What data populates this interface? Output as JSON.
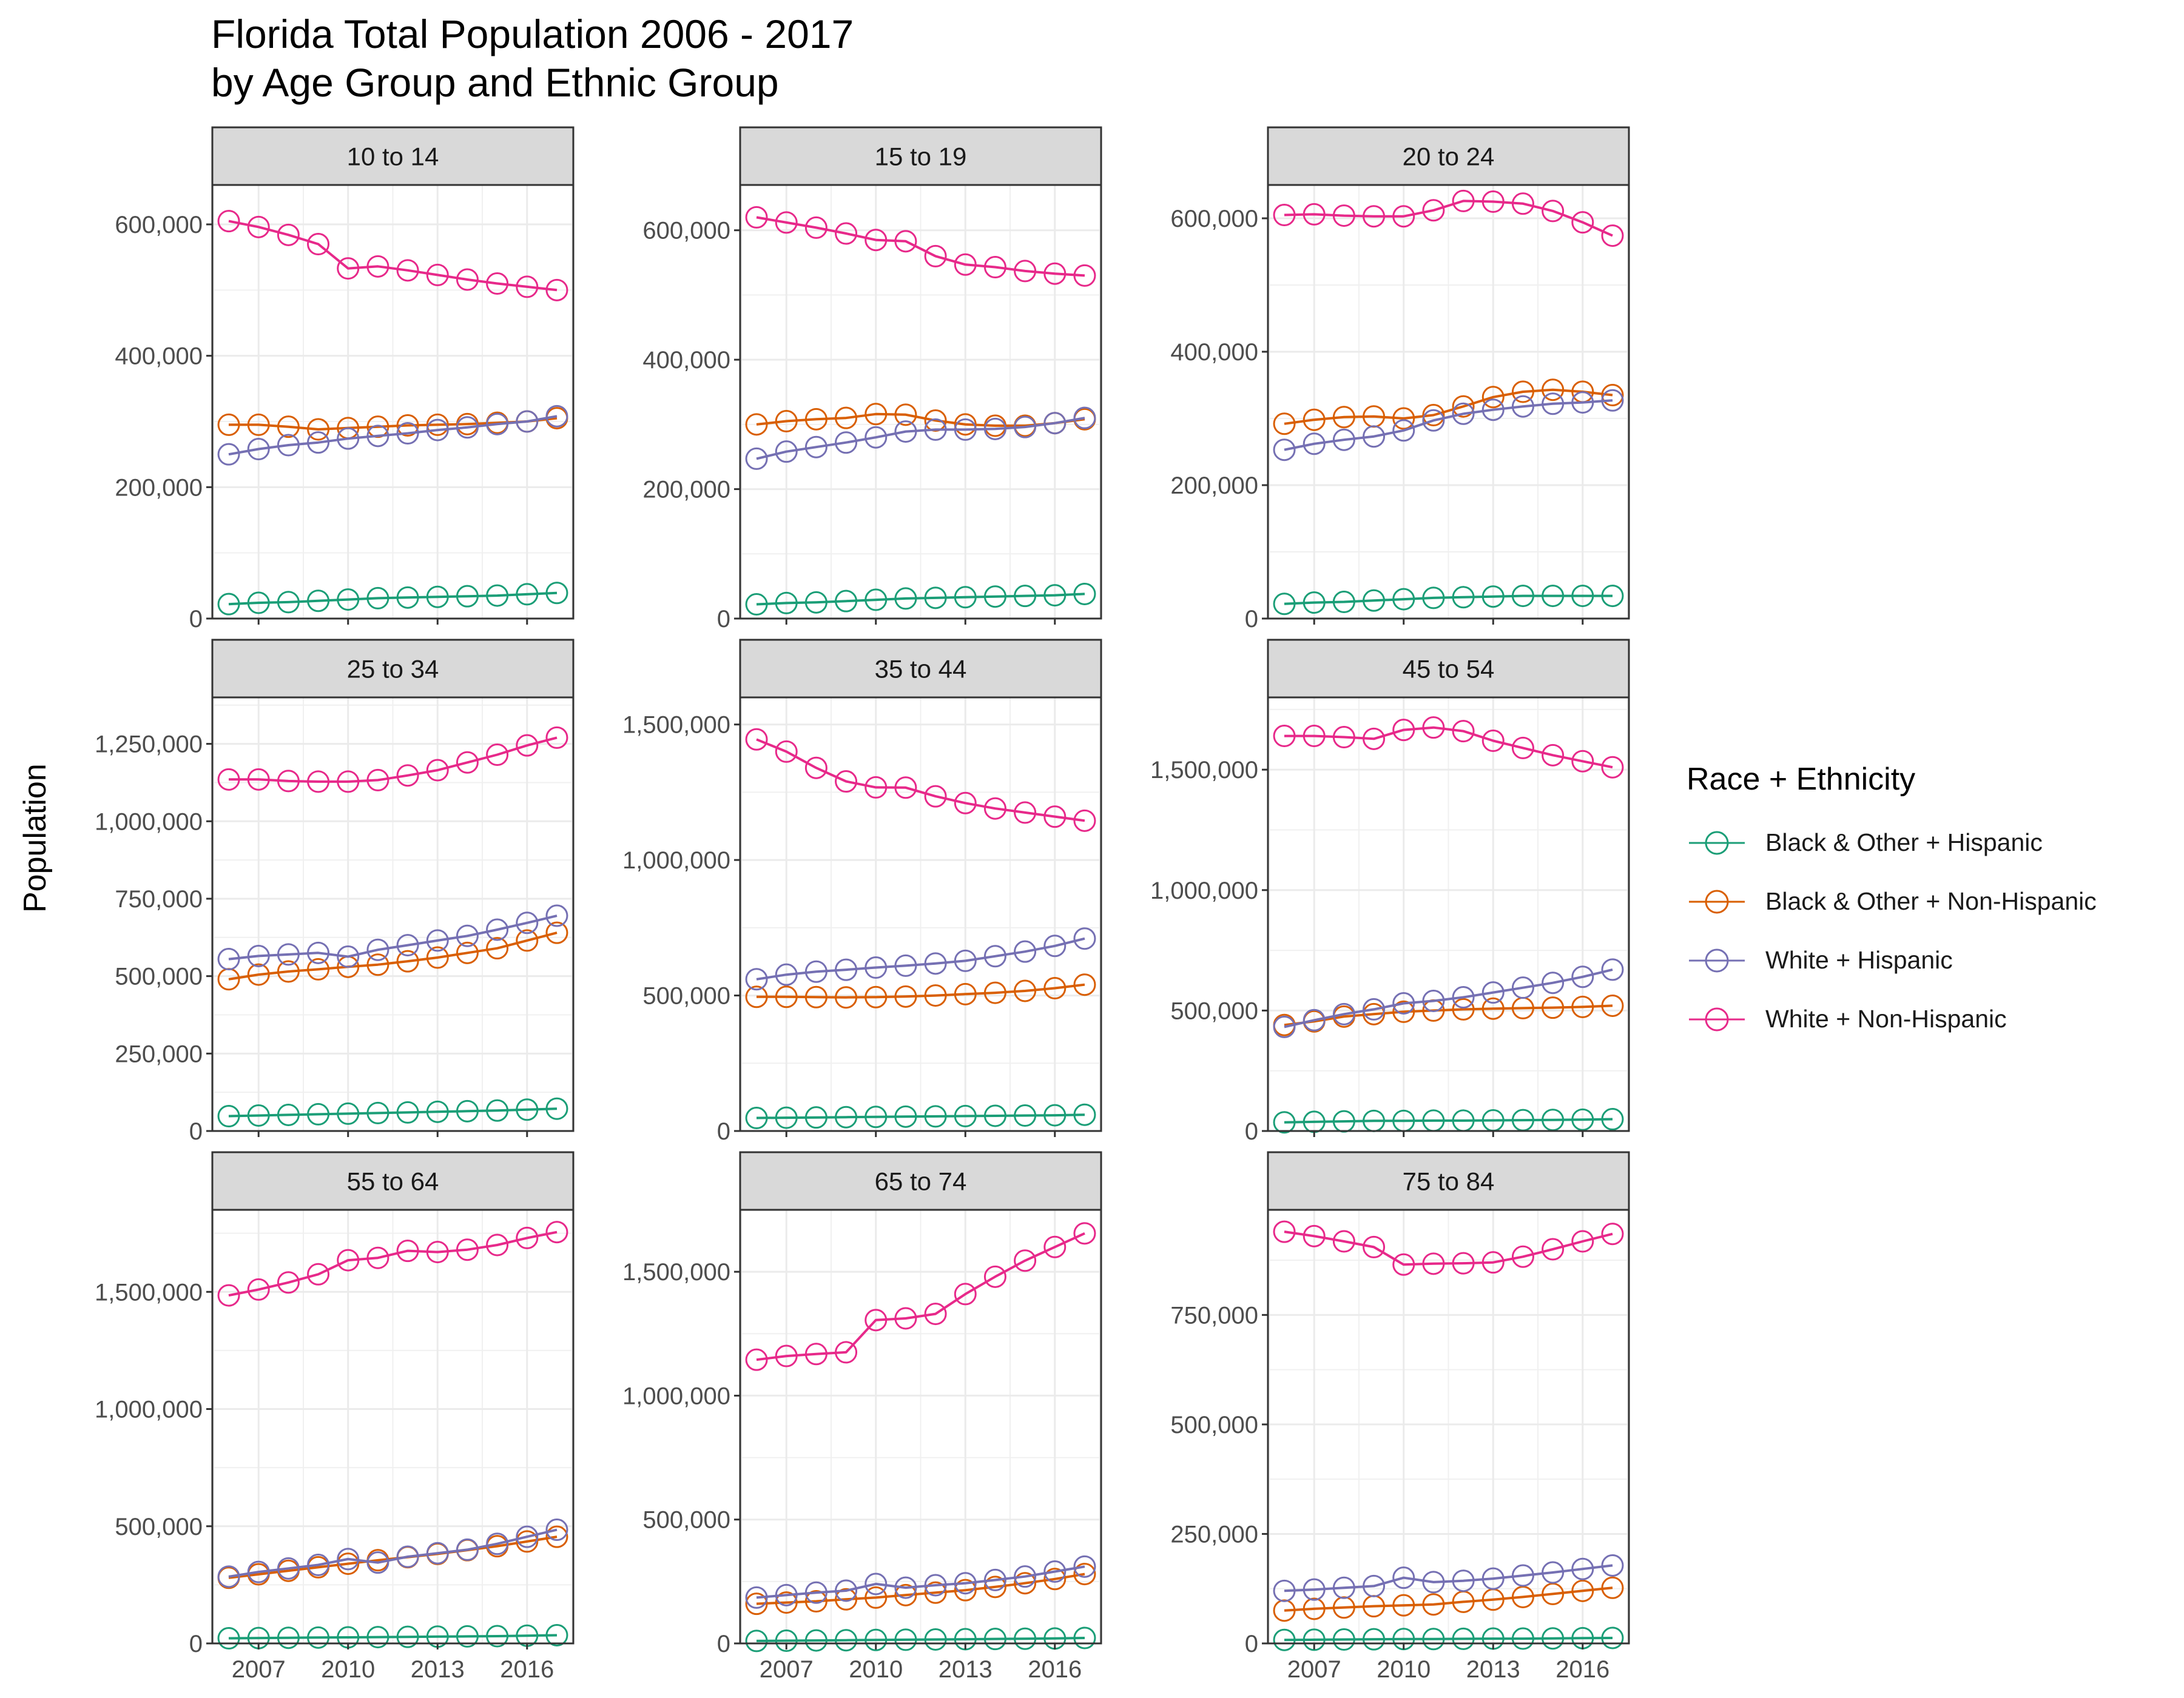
{
  "chart_data": {
    "type": "line",
    "title": [
      "Florida Total Population 2006 - 2017",
      "by Age Group and Ethnic Group"
    ],
    "ylabel": "Population",
    "xlabel": "",
    "x": [
      2006,
      2007,
      2008,
      2009,
      2010,
      2011,
      2012,
      2013,
      2014,
      2015,
      2016,
      2017
    ],
    "x_ticks": [
      2007,
      2010,
      2013,
      2016
    ],
    "grid": true,
    "markers": "open-circle",
    "facet_layout": "3x3, free y scales",
    "legend": {
      "title": "Race + Ethnicity",
      "position": "right",
      "entries": [
        {
          "name": "Black & Other + Hispanic",
          "color": "#1b9e77"
        },
        {
          "name": "Black & Other + Non-Hispanic",
          "color": "#d95f02"
        },
        {
          "name": "White + Hispanic",
          "color": "#7570b3"
        },
        {
          "name": "White + Non-Hispanic",
          "color": "#e7298a"
        }
      ]
    },
    "panels": [
      {
        "label": "10 to 14",
        "ylim": [
          0,
          660000
        ],
        "yticks": [
          0,
          200000,
          400000,
          600000
        ],
        "ytick_labels": [
          "0",
          "200,000",
          "400,000",
          "600,000"
        ],
        "series": [
          {
            "name": "Black & Other + Hispanic",
            "values": [
              22000,
              24000,
              25000,
              27000,
              29000,
              31000,
              32000,
              33000,
              34000,
              35000,
              37000,
              39000
            ]
          },
          {
            "name": "Black & Other + Non-Hispanic",
            "values": [
              295000,
              295000,
              292000,
              288000,
              290000,
              292000,
              294000,
              295000,
              296000,
              298000,
              300000,
              305000
            ]
          },
          {
            "name": "White + Hispanic",
            "values": [
              250000,
              258000,
              264000,
              268000,
              274000,
              278000,
              282000,
              287000,
              291000,
              296000,
              300000,
              308000
            ]
          },
          {
            "name": "White + Non-Hispanic",
            "values": [
              605000,
              596000,
              584000,
              570000,
              533000,
              536000,
              530000,
              523000,
              516000,
              510000,
              505000,
              500000
            ]
          }
        ]
      },
      {
        "label": "15 to 19",
        "ylim": [
          0,
          670000
        ],
        "yticks": [
          0,
          200000,
          400000,
          600000
        ],
        "ytick_labels": [
          "0",
          "200,000",
          "400,000",
          "600,000"
        ],
        "series": [
          {
            "name": "Black & Other + Hispanic",
            "values": [
              22000,
              24000,
              25000,
              27000,
              29000,
              31000,
              32000,
              33000,
              34000,
              35000,
              36000,
              38000
            ]
          },
          {
            "name": "Black & Other + Non-Hispanic",
            "values": [
              300000,
              305000,
              308000,
              310000,
              316000,
              315000,
              306000,
              300000,
              298000,
              298000,
              302000,
              308000
            ]
          },
          {
            "name": "White + Hispanic",
            "values": [
              247000,
              258000,
              265000,
              272000,
              280000,
              289000,
              292000,
              292000,
              293000,
              296000,
              302000,
              310000
            ]
          },
          {
            "name": "White + Non-Hispanic",
            "values": [
              620000,
              612000,
              604000,
              595000,
              585000,
              583000,
              560000,
              547000,
              543000,
              537000,
              533000,
              530000
            ]
          }
        ]
      },
      {
        "label": "20 to 24",
        "ylim": [
          0,
          650000
        ],
        "yticks": [
          0,
          200000,
          400000,
          600000
        ],
        "ytick_labels": [
          "0",
          "200,000",
          "400,000",
          "600,000"
        ],
        "series": [
          {
            "name": "Black & Other + Hispanic",
            "values": [
              22000,
              24000,
              25000,
              27000,
              29000,
              31000,
              32000,
              33000,
              34000,
              34000,
              34000,
              34000
            ]
          },
          {
            "name": "Black & Other + Non-Hispanic",
            "values": [
              292000,
              298000,
              302000,
              303000,
              300000,
              305000,
              318000,
              332000,
              340000,
              343000,
              340000,
              335000
            ]
          },
          {
            "name": "White + Hispanic",
            "values": [
              253000,
              262000,
              268000,
              273000,
              282000,
              297000,
              307000,
              313000,
              318000,
              322000,
              324000,
              327000
            ]
          },
          {
            "name": "White + Non-Hispanic",
            "values": [
              605000,
              606000,
              604000,
              603000,
              603000,
              612000,
              626000,
              625000,
              622000,
              611000,
              594000,
              574000
            ]
          }
        ]
      },
      {
        "label": "25 to 34",
        "ylim": [
          0,
          1400000
        ],
        "yticks": [
          0,
          250000,
          500000,
          750000,
          1000000,
          1250000
        ],
        "ytick_labels": [
          "0",
          "250,000",
          "500,000",
          "750,000",
          "1,000,000",
          "1,250,000"
        ],
        "series": [
          {
            "name": "Black & Other + Hispanic",
            "values": [
              48000,
              50000,
              52000,
              54000,
              56000,
              58000,
              60000,
              62000,
              64000,
              66000,
              69000,
              72000
            ]
          },
          {
            "name": "Black & Other + Non-Hispanic",
            "values": [
              490000,
              505000,
              515000,
              522000,
              530000,
              537000,
              548000,
              560000,
              575000,
              590000,
              615000,
              640000
            ]
          },
          {
            "name": "White + Hispanic",
            "values": [
              555000,
              565000,
              570000,
              575000,
              563000,
              585000,
              600000,
              615000,
              630000,
              650000,
              672000,
              695000
            ]
          },
          {
            "name": "White + Non-Hispanic",
            "values": [
              1135000,
              1135000,
              1130000,
              1128000,
              1128000,
              1133000,
              1148000,
              1165000,
              1190000,
              1215000,
              1245000,
              1270000
            ]
          }
        ]
      },
      {
        "label": "35 to 44",
        "ylim": [
          0,
          1600000
        ],
        "yticks": [
          0,
          500000,
          1000000,
          1500000
        ],
        "ytick_labels": [
          "0",
          "500,000",
          "1,000,000",
          "1,500,000"
        ],
        "series": [
          {
            "name": "Black & Other + Hispanic",
            "values": [
              48000,
              49000,
              50000,
              51000,
              52000,
              53000,
              54000,
              55000,
              56000,
              57000,
              58000,
              60000
            ]
          },
          {
            "name": "Black & Other + Non-Hispanic",
            "values": [
              495000,
              495000,
              494000,
              493000,
              494000,
              496000,
              500000,
              505000,
              510000,
              517000,
              527000,
              540000
            ]
          },
          {
            "name": "White + Hispanic",
            "values": [
              560000,
              577000,
              588000,
              595000,
              603000,
              610000,
              618000,
              628000,
              645000,
              662000,
              683000,
              710000
            ]
          },
          {
            "name": "White + Non-Hispanic",
            "values": [
              1445000,
              1400000,
              1340000,
              1290000,
              1268000,
              1267000,
              1235000,
              1210000,
              1190000,
              1175000,
              1160000,
              1145000
            ]
          }
        ]
      },
      {
        "label": "45 to 54",
        "ylim": [
          0,
          1800000
        ],
        "yticks": [
          0,
          500000,
          1000000,
          1500000
        ],
        "ytick_labels": [
          "0",
          "500,000",
          "1,000,000",
          "1,500,000"
        ],
        "series": [
          {
            "name": "Black & Other + Hispanic",
            "values": [
              36000,
              38000,
              40000,
              42000,
              42000,
              43000,
              43000,
              44000,
              45000,
              46000,
              47000,
              49000
            ]
          },
          {
            "name": "Black & Other + Non-Hispanic",
            "values": [
              440000,
              455000,
              475000,
              485000,
              495000,
              500000,
              505000,
              508000,
              510000,
              512000,
              515000,
              520000
            ]
          },
          {
            "name": "White + Hispanic",
            "values": [
              432000,
              460000,
              485000,
              505000,
              530000,
              540000,
              555000,
              575000,
              595000,
              615000,
              640000,
              670000
            ]
          },
          {
            "name": "White + Non-Hispanic",
            "values": [
              1640000,
              1640000,
              1635000,
              1628000,
              1665000,
              1675000,
              1660000,
              1620000,
              1590000,
              1560000,
              1535000,
              1510000
            ]
          }
        ]
      },
      {
        "label": "55 to 64",
        "ylim": [
          0,
          1850000
        ],
        "yticks": [
          0,
          500000,
          1000000,
          1500000
        ],
        "ytick_labels": [
          "0",
          "500,000",
          "1,000,000",
          "1,500,000"
        ],
        "series": [
          {
            "name": "Black & Other + Hispanic",
            "values": [
              22000,
              23000,
              24000,
              25000,
              26000,
              27000,
              28000,
              29000,
              30000,
              31000,
              33000,
              35000
            ]
          },
          {
            "name": "Black & Other + Non-Hispanic",
            "values": [
              280000,
              295000,
              310000,
              325000,
              340000,
              355000,
              368000,
              382000,
              398000,
              415000,
              435000,
              455000
            ]
          },
          {
            "name": "White + Hispanic",
            "values": [
              285000,
              305000,
              320000,
              335000,
              360000,
              345000,
              370000,
              385000,
              400000,
              425000,
              455000,
              485000
            ]
          },
          {
            "name": "White + Non-Hispanic",
            "values": [
              1485000,
              1510000,
              1540000,
              1575000,
              1635000,
              1645000,
              1675000,
              1670000,
              1680000,
              1700000,
              1730000,
              1755000
            ]
          }
        ]
      },
      {
        "label": "65 to 74",
        "ylim": [
          0,
          1750000
        ],
        "yticks": [
          0,
          500000,
          1000000,
          1500000
        ],
        "ytick_labels": [
          "0",
          "500,000",
          "1,000,000",
          "1,500,000"
        ],
        "series": [
          {
            "name": "Black & Other + Hispanic",
            "values": [
              10000,
              11000,
              12000,
              13000,
              14000,
              15000,
              16000,
              17000,
              18000,
              19000,
              20000,
              22000
            ]
          },
          {
            "name": "Black & Other + Non-Hispanic",
            "values": [
              160000,
              165000,
              170000,
              178000,
              185000,
              195000,
              205000,
              215000,
              228000,
              243000,
              260000,
              280000
            ]
          },
          {
            "name": "White + Hispanic",
            "values": [
              185000,
              195000,
              205000,
              213000,
              240000,
              225000,
              235000,
              243000,
              256000,
              270000,
              290000,
              310000
            ]
          },
          {
            "name": "White + Non-Hispanic",
            "values": [
              1145000,
              1160000,
              1168000,
              1175000,
              1305000,
              1312000,
              1330000,
              1410000,
              1480000,
              1545000,
              1600000,
              1655000
            ]
          }
        ]
      },
      {
        "label": "75 to 84",
        "ylim": [
          0,
          990000
        ],
        "yticks": [
          0,
          250000,
          500000,
          750000
        ],
        "ytick_labels": [
          "0",
          "250,000",
          "500,000",
          "750,000"
        ],
        "series": [
          {
            "name": "Black & Other + Hispanic",
            "values": [
              8000,
              8500,
              9000,
              9500,
              10000,
              10000,
              10500,
              11000,
              11000,
              11500,
              12000,
              12500
            ]
          },
          {
            "name": "Black & Other + Non-Hispanic",
            "values": [
              75000,
              79000,
              82000,
              85000,
              87000,
              89000,
              95000,
              100000,
              106000,
              113000,
              120000,
              127000
            ]
          },
          {
            "name": "White + Hispanic",
            "values": [
              120000,
              123000,
              127000,
              131000,
              150000,
              140000,
              143000,
              148000,
              155000,
              162000,
              170000,
              178000
            ]
          },
          {
            "name": "White + Non-Hispanic",
            "values": [
              940000,
              930000,
              918000,
              905000,
              865000,
              867000,
              868000,
              870000,
              883000,
              900000,
              918000,
              935000
            ]
          }
        ]
      }
    ]
  }
}
